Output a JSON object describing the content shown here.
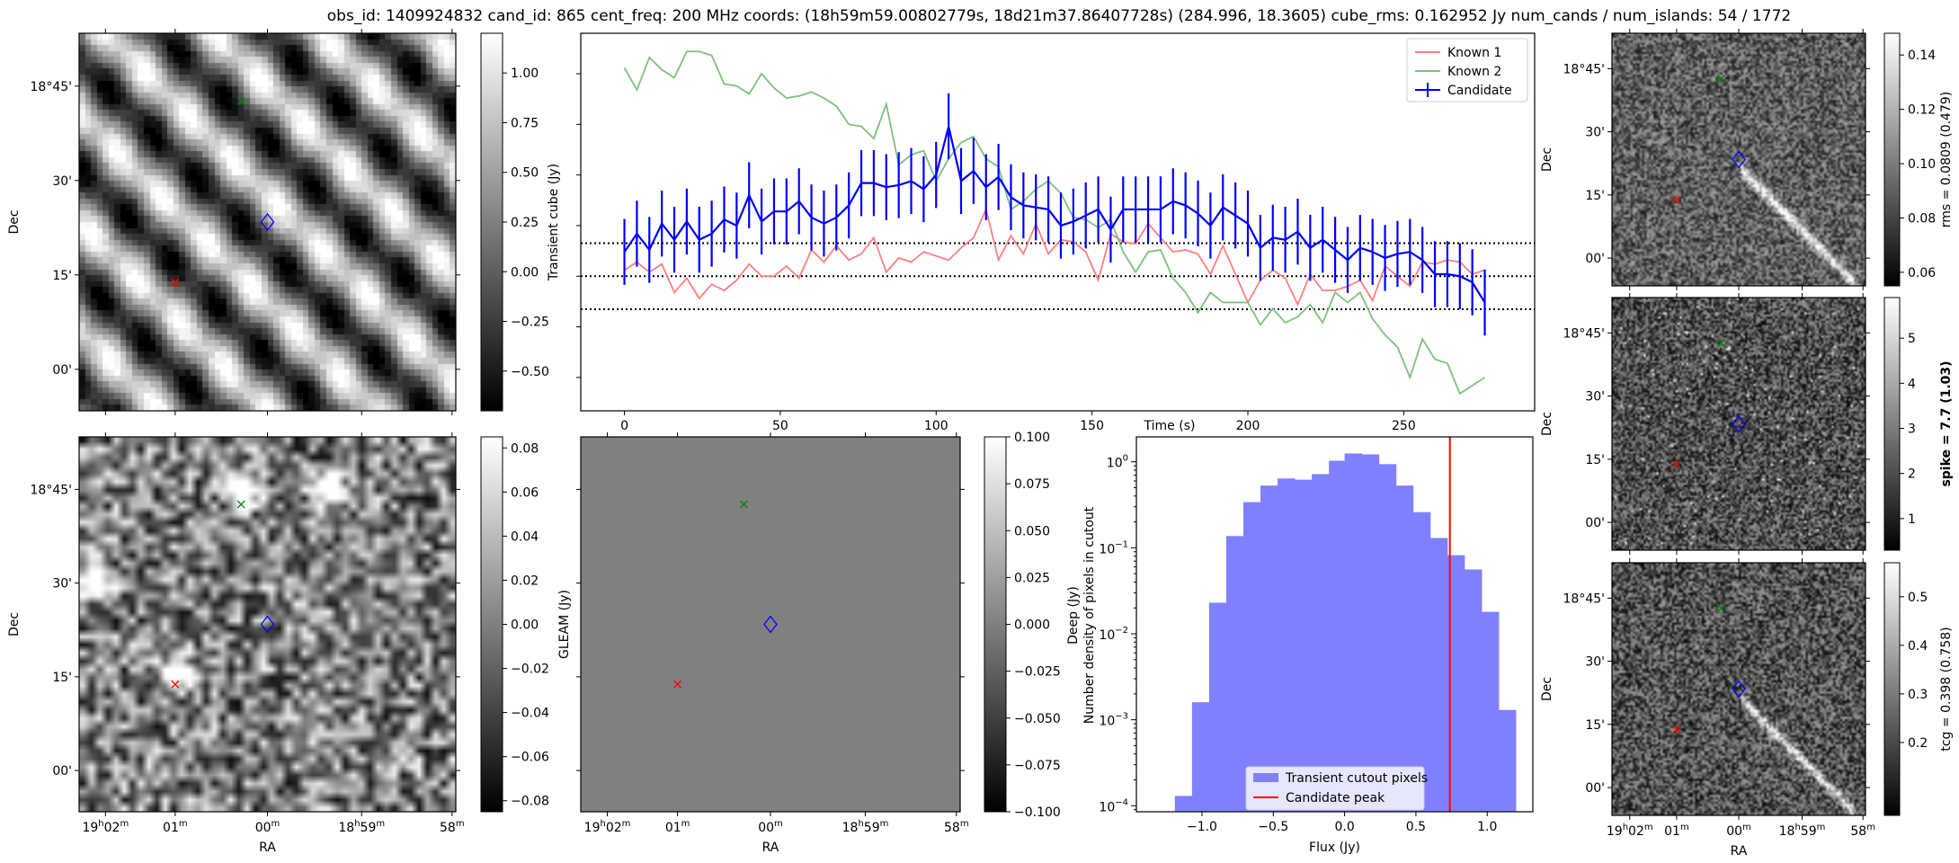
{
  "title": "obs_id: 1409924832 cand_id: 865 cent_freq: 200 MHz coords: (18h59m59.00802779s, 18d21m37.86407728s) (284.996, 18.3605) cube_rms: 0.162952 Jy num_cands / num_islands: 54 / 1772",
  "sky_axes": {
    "dec_label": "Dec",
    "ra_label": "RA",
    "dec_ticks": [
      "18°45'",
      "30'",
      "15'",
      "00'"
    ],
    "ra_ticks": [
      "19h02m",
      "01m",
      "00m",
      "18h59m",
      "58m"
    ]
  },
  "panels": {
    "transient": {
      "colorbar_ticks": [
        "1.00",
        "0.75",
        "0.50",
        "0.25",
        "0.00",
        "−0.25",
        "−0.50"
      ],
      "colorbar_range": [
        -0.7,
        1.2
      ]
    },
    "deep": {
      "colorbar_ticks": [
        "0.08",
        "0.06",
        "0.04",
        "0.02",
        "0.00",
        "−0.02",
        "−0.04",
        "−0.06",
        "−0.08"
      ],
      "colorbar_range": [
        -0.085,
        0.085
      ]
    },
    "gleam": {
      "ylabel": "GLEAM (Jy)",
      "colorbar_ticks": [
        "0.100",
        "0.075",
        "0.050",
        "0.025",
        "0.000",
        "−0.025",
        "−0.050",
        "−0.075",
        "−0.100"
      ],
      "colorbar_range": [
        -0.1,
        0.1
      ]
    },
    "rms": {
      "colorbar_label": "rms = 0.0809 (0.479)",
      "colorbar_ticks": [
        "0.14",
        "0.12",
        "0.10",
        "0.08",
        "0.06"
      ],
      "colorbar_range": [
        0.055,
        0.148
      ]
    },
    "spike": {
      "colorbar_label": "spike = 7.7 (1.03)",
      "colorbar_ticks": [
        "5",
        "4",
        "3",
        "2",
        "1"
      ],
      "colorbar_range": [
        0.3,
        5.9
      ]
    },
    "tcg": {
      "colorbar_label": "tcg = 0.398 (0.758)",
      "colorbar_ticks": [
        "0.5",
        "0.4",
        "0.3",
        "0.2"
      ],
      "colorbar_range": [
        0.05,
        0.57
      ]
    }
  },
  "markers": {
    "known1_color": "#ff0000",
    "known2_color": "#008000",
    "candidate_color": "#0000ff"
  },
  "chart_data": [
    {
      "type": "line",
      "title": "",
      "xlabel": "Time (s)",
      "ylabel": "Transient cube (Jy)",
      "xlim": [
        -14,
        292
      ],
      "ylim": [
        -0.665,
        1.2
      ],
      "x_ticks": [
        "0",
        "50",
        "100",
        "150",
        "200",
        "250"
      ],
      "y_ticks": [
        1.0,
        0.75,
        0.5,
        0.25,
        0.0,
        -0.25,
        -0.5
      ],
      "x": [
        0,
        4,
        8,
        12,
        16,
        20,
        24,
        28,
        32,
        36,
        40,
        44,
        48,
        52,
        56,
        60,
        64,
        68,
        72,
        76,
        80,
        84,
        88,
        92,
        96,
        100,
        104,
        108,
        112,
        116,
        120,
        124,
        128,
        132,
        136,
        140,
        144,
        148,
        152,
        156,
        160,
        164,
        168,
        172,
        176,
        180,
        184,
        188,
        192,
        196,
        200,
        204,
        208,
        212,
        216,
        220,
        224,
        228,
        232,
        236,
        240,
        244,
        248,
        252,
        256,
        260,
        264,
        268,
        272,
        276
      ],
      "series": [
        {
          "name": "Known 1",
          "color": "#ff7f7f",
          "values": [
            0.03,
            0.07,
            0.02,
            0.06,
            -0.08,
            -0.01,
            -0.11,
            -0.04,
            -0.07,
            -0.02,
            0.06,
            0.0,
            0.0,
            0.05,
            -0.01,
            0.13,
            0.07,
            0.15,
            0.08,
            0.11,
            0.19,
            0.02,
            0.09,
            0.07,
            0.12,
            0.1,
            0.08,
            0.14,
            0.19,
            0.33,
            0.08,
            0.2,
            0.11,
            0.26,
            0.11,
            0.18,
            0.17,
            0.12,
            -0.02,
            0.21,
            0.17,
            0.16,
            0.26,
            0.19,
            0.12,
            0.13,
            0.11,
            0.01,
            0.15,
            0.01,
            -0.13,
            -0.02,
            0.03,
            -0.01,
            -0.14,
            0.01,
            -0.07,
            -0.07,
            -0.05,
            -0.02,
            -0.12,
            0.05,
            0.0,
            -0.05,
            0.07,
            0.06,
            0.08,
            0.07,
            0.01,
            0.03
          ]
        },
        {
          "name": "Known 2",
          "color": "#7fbf7f",
          "values": [
            1.03,
            0.92,
            1.08,
            1.02,
            0.98,
            1.11,
            1.11,
            1.09,
            0.95,
            0.94,
            0.9,
            1.0,
            0.93,
            0.88,
            0.89,
            0.91,
            0.88,
            0.84,
            0.75,
            0.74,
            0.68,
            0.85,
            0.55,
            0.6,
            0.62,
            0.47,
            0.58,
            0.66,
            0.69,
            0.58,
            0.54,
            0.33,
            0.37,
            0.43,
            0.47,
            0.41,
            0.29,
            0.28,
            0.24,
            0.28,
            0.12,
            0.02,
            0.12,
            0.13,
            -0.01,
            -0.08,
            -0.18,
            -0.08,
            -0.13,
            -0.13,
            -0.13,
            -0.24,
            -0.16,
            -0.23,
            -0.2,
            -0.14,
            -0.23,
            -0.08,
            -0.13,
            -0.08,
            -0.21,
            -0.29,
            -0.35,
            -0.5,
            -0.31,
            -0.41,
            -0.43,
            -0.58,
            -0.54,
            -0.5
          ]
        },
        {
          "name": "Candidate",
          "color": "#0000ff",
          "error": 0.163,
          "values": [
            0.12,
            0.21,
            0.13,
            0.26,
            0.18,
            0.27,
            0.18,
            0.21,
            0.28,
            0.25,
            0.4,
            0.27,
            0.32,
            0.32,
            0.37,
            0.29,
            0.26,
            0.29,
            0.35,
            0.46,
            0.46,
            0.44,
            0.45,
            0.47,
            0.43,
            0.5,
            0.74,
            0.47,
            0.52,
            0.44,
            0.49,
            0.39,
            0.35,
            0.34,
            0.33,
            0.25,
            0.27,
            0.3,
            0.33,
            0.23,
            0.33,
            0.33,
            0.33,
            0.33,
            0.37,
            0.35,
            0.31,
            0.25,
            0.34,
            0.3,
            0.26,
            0.14,
            0.19,
            0.18,
            0.22,
            0.14,
            0.18,
            0.13,
            0.08,
            0.14,
            0.12,
            0.09,
            0.11,
            0.12,
            0.08,
            0.01,
            0.01,
            0.0,
            -0.03,
            -0.13
          ]
        }
      ],
      "hlines": [
        0.163,
        0.0,
        -0.163
      ],
      "legend": [
        "Known 1",
        "Known 2",
        "Candidate"
      ],
      "legend_position": "top-right",
      "grid": false
    },
    {
      "type": "bar",
      "subtype": "histogram",
      "xlabel": "Flux (Jy)",
      "ylabel_lines": [
        "Deep (Jy)",
        "Number density of pixels in cutout"
      ],
      "xlim": [
        -1.46,
        1.32
      ],
      "ylog": true,
      "ylim_log10": [
        -4.07,
        0.29
      ],
      "x_ticks": [
        "−1.0",
        "−0.5",
        "0.0",
        "0.5",
        "1.0"
      ],
      "y_ticks": [
        {
          "base": "10",
          "exp": "0"
        },
        {
          "base": "10",
          "exp": "−1"
        },
        {
          "base": "10",
          "exp": "−2"
        },
        {
          "base": "10",
          "exp": "−3"
        },
        {
          "base": "10",
          "exp": "−4"
        }
      ],
      "bin_edges": [
        -1.19,
        -1.07,
        -0.95,
        -0.83,
        -0.71,
        -0.59,
        -0.47,
        -0.35,
        -0.23,
        -0.11,
        0.0,
        0.12,
        0.24,
        0.36,
        0.48,
        0.6,
        0.72,
        0.84,
        0.96,
        1.08,
        1.2
      ],
      "values": [
        0.00013,
        0.0016,
        0.023,
        0.137,
        0.34,
        0.53,
        0.64,
        0.62,
        0.72,
        1.03,
        1.25,
        1.22,
        0.94,
        0.53,
        0.26,
        0.13,
        0.082,
        0.056,
        0.018,
        0.0013
      ],
      "bar_color": "#8080ff",
      "candidate_peak": 0.738,
      "peak_color": "#ff0000",
      "legend": [
        "Transient cutout pixels",
        "Candidate peak"
      ],
      "legend_position": "lower-center"
    }
  ]
}
